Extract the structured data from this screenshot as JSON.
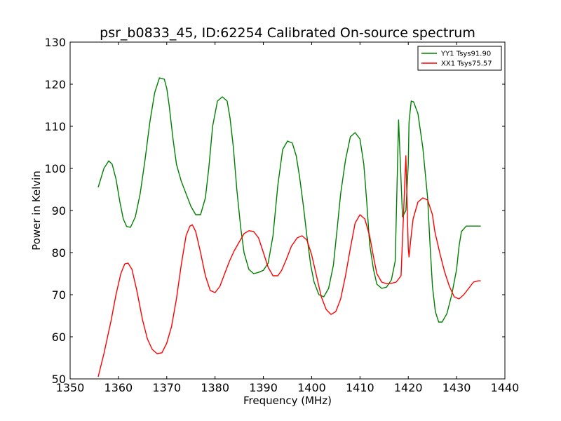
{
  "chart_data": {
    "type": "line",
    "title": "psr_b0833_45, ID:62254 Calibrated On-source spectrum",
    "xlabel": "Frequency (MHz)",
    "ylabel": "Power in Kelvin",
    "xlim": [
      1350,
      1440
    ],
    "ylim": [
      50,
      130
    ],
    "xticks": [
      1350,
      1360,
      1370,
      1380,
      1390,
      1400,
      1410,
      1420,
      1430,
      1440
    ],
    "yticks": [
      50,
      60,
      70,
      80,
      90,
      100,
      110,
      120,
      130
    ],
    "grid": false,
    "legend_placement": "top-right",
    "series": [
      {
        "name": "YY1 Tsys91.90",
        "color": "#008000",
        "x": [
          1355.8,
          1357.0,
          1358.0,
          1358.7,
          1359.5,
          1360.3,
          1361.0,
          1361.7,
          1362.5,
          1363.5,
          1364.5,
          1365.5,
          1366.5,
          1367.5,
          1368.5,
          1369.5,
          1370.0,
          1370.5,
          1371.3,
          1372.0,
          1373.0,
          1374.0,
          1375.0,
          1376.0,
          1377.0,
          1378.0,
          1378.7,
          1379.5,
          1380.5,
          1381.5,
          1382.5,
          1383.1,
          1383.8,
          1384.5,
          1385.3,
          1386.0,
          1387.0,
          1388.0,
          1389.0,
          1390.0,
          1391.0,
          1392.0,
          1393.0,
          1394.0,
          1395.0,
          1396.0,
          1396.8,
          1397.5,
          1398.3,
          1399.0,
          1399.8,
          1400.5,
          1401.5,
          1402.5,
          1403.5,
          1404.5,
          1405.3,
          1406.0,
          1407.0,
          1408.0,
          1409.0,
          1410.0,
          1410.8,
          1411.4,
          1412.0,
          1412.8,
          1413.5,
          1414.5,
          1415.5,
          1416.5,
          1417.3,
          1418.0,
          1418.8,
          1419.5,
          1420.0,
          1420.15,
          1420.6,
          1421.1,
          1422.0,
          1423.0,
          1424.0,
          1424.5,
          1425.0,
          1425.6,
          1426.3,
          1427.0,
          1428.0,
          1429.0,
          1430.0,
          1430.5,
          1431.0,
          1432.0,
          1433.0,
          1434.0,
          1435.0
        ],
        "values": [
          95.5,
          100.0,
          101.8,
          101.0,
          97.5,
          92.0,
          88.0,
          86.2,
          86.0,
          88.5,
          94.0,
          102.0,
          111.0,
          118.0,
          121.5,
          121.2,
          119.0,
          115.0,
          107.0,
          101.0,
          97.0,
          94.0,
          91.0,
          89.0,
          89.0,
          93.0,
          100.0,
          110.0,
          116.0,
          117.0,
          116.0,
          112.0,
          105.0,
          95.0,
          86.0,
          80.0,
          76.0,
          75.0,
          75.3,
          75.8,
          77.5,
          84.0,
          96.0,
          104.5,
          106.5,
          106.0,
          103.0,
          98.0,
          91.0,
          84.0,
          77.0,
          73.0,
          70.0,
          69.5,
          71.5,
          77.0,
          86.0,
          94.0,
          102.0,
          107.5,
          108.5,
          107.0,
          101.0,
          92.0,
          82.0,
          76.0,
          72.5,
          71.5,
          71.8,
          73.5,
          78.0,
          111.5,
          88.5,
          90.0,
          101.0,
          111.0,
          116.0,
          115.8,
          113.0,
          105.0,
          93.0,
          82.0,
          72.0,
          66.0,
          63.5,
          63.5,
          65.5,
          70.0,
          76.0,
          81.5,
          85.0,
          86.3,
          86.3,
          86.3,
          86.3
        ]
      },
      {
        "name": "XX1 Tsys75.57",
        "color": "#ff0000",
        "x": [
          1355.8,
          1357.0,
          1358.5,
          1359.5,
          1360.5,
          1361.3,
          1362.0,
          1362.8,
          1363.8,
          1365.0,
          1366.0,
          1367.0,
          1368.0,
          1369.0,
          1370.0,
          1371.0,
          1372.0,
          1373.0,
          1374.0,
          1374.8,
          1375.3,
          1376.0,
          1377.0,
          1378.0,
          1379.0,
          1380.0,
          1381.0,
          1382.0,
          1383.0,
          1384.0,
          1385.0,
          1386.0,
          1387.0,
          1388.0,
          1389.0,
          1390.0,
          1391.0,
          1392.0,
          1393.0,
          1393.8,
          1394.8,
          1395.8,
          1397.0,
          1398.0,
          1399.0,
          1400.0,
          1401.0,
          1402.0,
          1403.0,
          1404.0,
          1405.0,
          1406.0,
          1407.0,
          1408.0,
          1409.0,
          1410.0,
          1411.0,
          1412.0,
          1412.8,
          1413.5,
          1414.5,
          1415.5,
          1416.5,
          1417.5,
          1418.5,
          1419.5,
          1420.0,
          1420.15,
          1420.5,
          1421.0,
          1422.0,
          1423.0,
          1424.0,
          1425.0,
          1425.5,
          1426.5,
          1427.5,
          1428.5,
          1429.5,
          1430.5,
          1431.5,
          1432.5,
          1433.5,
          1434.5,
          1435.0
        ],
        "values": [
          50.5,
          56.0,
          64.0,
          70.0,
          75.0,
          77.3,
          77.5,
          76.0,
          71.0,
          64.0,
          59.5,
          57.0,
          56.0,
          56.2,
          58.5,
          62.5,
          69.0,
          77.0,
          84.0,
          86.3,
          86.6,
          85.0,
          80.0,
          74.5,
          71.0,
          70.5,
          72.0,
          75.0,
          78.0,
          80.5,
          82.5,
          84.5,
          85.2,
          85.0,
          83.5,
          80.0,
          76.5,
          74.5,
          74.5,
          75.8,
          78.5,
          81.5,
          83.5,
          84.0,
          83.0,
          79.5,
          74.5,
          69.5,
          66.5,
          65.3,
          66.0,
          69.0,
          74.5,
          81.0,
          87.0,
          89.0,
          88.0,
          84.0,
          79.0,
          75.0,
          73.0,
          72.6,
          72.7,
          73.0,
          74.5,
          103.0,
          81.0,
          79.0,
          83.0,
          88.0,
          92.0,
          93.0,
          92.5,
          89.0,
          85.0,
          80.0,
          75.5,
          72.0,
          69.5,
          69.0,
          70.0,
          71.5,
          73.0,
          73.3,
          73.3
        ]
      }
    ]
  }
}
